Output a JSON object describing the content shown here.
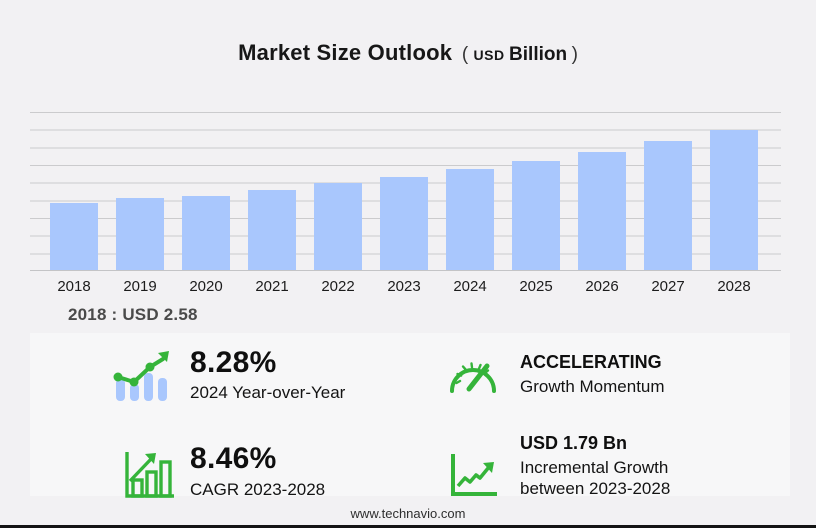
{
  "title": {
    "main": "Market Size Outlook",
    "open": "(",
    "currency": "USD",
    "unit": "Billion",
    "close": ")"
  },
  "chart_data": {
    "type": "bar",
    "title": "Market Size Outlook (USD Billion)",
    "categories": [
      "2018",
      "2019",
      "2020",
      "2021",
      "2022",
      "2023",
      "2024",
      "2025",
      "2026",
      "2027",
      "2028"
    ],
    "values": [
      2.58,
      2.77,
      2.85,
      3.08,
      3.31,
      3.57,
      3.86,
      4.18,
      4.53,
      4.92,
      5.36
    ],
    "xlabel": "",
    "ylabel": "USD Billion",
    "ylim": [
      0,
      6.08
    ],
    "grid": true,
    "legend": false,
    "bar_color": "#a9c7fd",
    "annotation": "2018 : USD  2.58"
  },
  "base_note": "2018 : USD  2.58",
  "stats": [
    {
      "icon": "bars-trendline-icon",
      "value": "8.28%",
      "label": "2024 Year-over-Year"
    },
    {
      "icon": "gauge-icon",
      "value": "ACCELERATING",
      "label": "Growth Momentum"
    },
    {
      "icon": "bar-chart-arrow-icon",
      "value": "8.46%",
      "label": "CAGR 2023-2028"
    },
    {
      "icon": "axes-trend-arrow-icon",
      "value": "USD 1.79 Bn",
      "label_line1": "Incremental Growth",
      "label_line2": "between 2023-2028"
    }
  ],
  "footer": {
    "url": "www.technavio.com"
  },
  "colors": {
    "background": "#f2f1f3",
    "bar": "#a9c7fd",
    "gridline": "#cbcbcd",
    "accent_green": "#35b43a",
    "text_dark": "#1a1a1a"
  }
}
